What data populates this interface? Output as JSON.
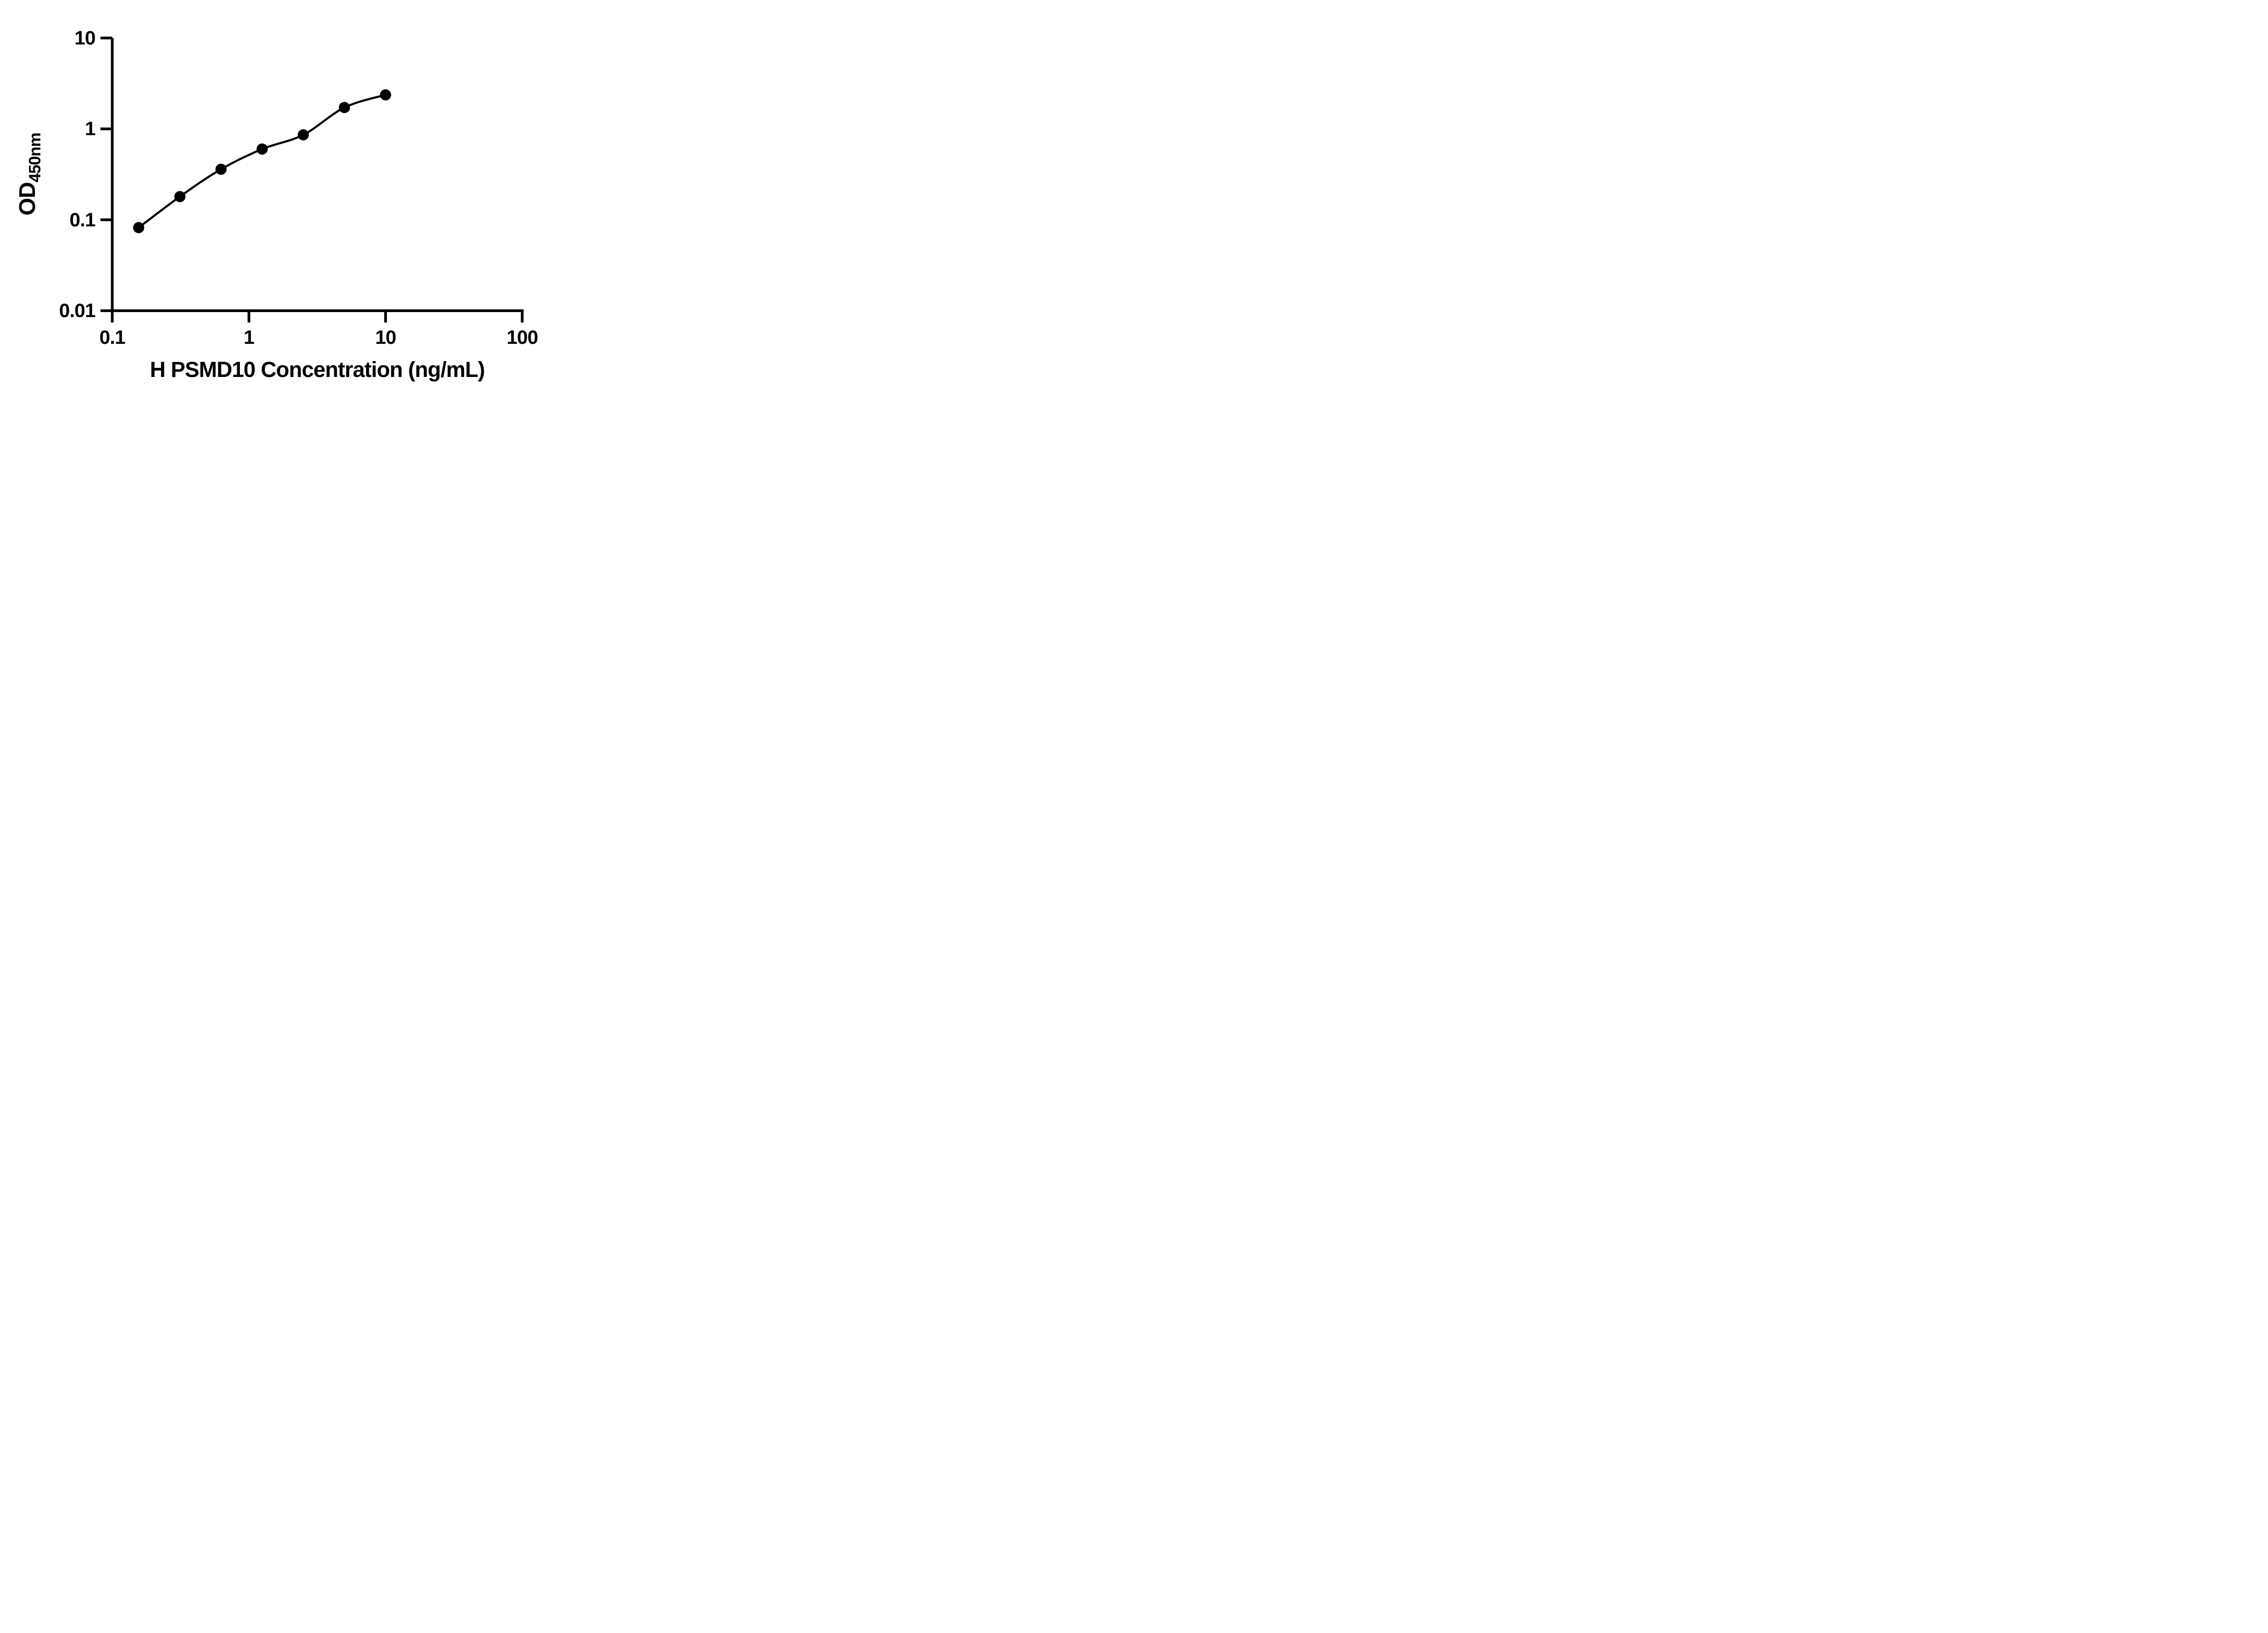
{
  "chart_data": {
    "type": "scatter",
    "title": "",
    "xlabel": "H PSMD10 Concentration (ng/mL)",
    "ylabel_main": "OD",
    "ylabel_sub": "450nm",
    "x_scale": "log",
    "y_scale": "log",
    "xlim": [
      0.1,
      100
    ],
    "ylim": [
      0.01,
      10
    ],
    "xtick_values": [
      0.1,
      1,
      10,
      100
    ],
    "xtick_labels": [
      "0.1",
      "1",
      "10",
      "100"
    ],
    "ytick_values": [
      10,
      1,
      0.1,
      0.01
    ],
    "ytick_labels": [
      "10",
      "1",
      "0.1",
      "0.01"
    ],
    "grid": "off",
    "legend": "none",
    "colors": {
      "foreground": "#000000",
      "background": "#ffffff",
      "marker": "#000000",
      "curve": "#000000"
    },
    "series": [
      {
        "marker": "filled-circle",
        "line": "fitted-curve",
        "points": [
          {
            "x": 0.156,
            "y": 0.082
          },
          {
            "x": 0.3125,
            "y": 0.18
          },
          {
            "x": 0.625,
            "y": 0.36
          },
          {
            "x": 1.25,
            "y": 0.6
          },
          {
            "x": 2.5,
            "y": 0.86
          },
          {
            "x": 5,
            "y": 1.72
          },
          {
            "x": 10,
            "y": 2.37
          }
        ]
      }
    ]
  }
}
